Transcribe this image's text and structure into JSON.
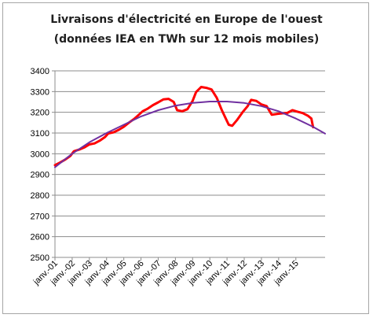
{
  "chart_data": {
    "type": "line",
    "title": "Livraisons d'électricité en Europe de l'ouest",
    "subtitle": "(données IEA en TWh sur 12 mois mobiles)",
    "xlabel": "",
    "ylabel": "",
    "ylim": [
      2500,
      3400
    ],
    "yticks": [
      2500,
      2600,
      2700,
      2800,
      2900,
      3000,
      3100,
      3200,
      3300,
      3400
    ],
    "xticks": [
      "janv.-01",
      "janv.-02",
      "janv.-03",
      "janv.-04",
      "janv.-05",
      "janv.-06",
      "janv.-07",
      "janv.-08",
      "janv.-09",
      "janv.-10",
      "janv.-11",
      "janv.-12",
      "janv.-13",
      "janv.-14",
      "janv.-15"
    ],
    "grid": "horizontal",
    "legend": "none",
    "series": [
      {
        "color": "#ff0000",
        "style": "data",
        "points": [
          [
            2001.0,
            2945
          ],
          [
            2001.3,
            2958
          ],
          [
            2001.6,
            2972
          ],
          [
            2001.9,
            2990
          ],
          [
            2002.1,
            3012
          ],
          [
            2002.4,
            3020
          ],
          [
            2002.7,
            3030
          ],
          [
            2003.0,
            3045
          ],
          [
            2003.3,
            3050
          ],
          [
            2003.6,
            3063
          ],
          [
            2003.9,
            3080
          ],
          [
            2004.1,
            3098
          ],
          [
            2004.4,
            3103
          ],
          [
            2004.7,
            3115
          ],
          [
            2005.0,
            3130
          ],
          [
            2005.3,
            3150
          ],
          [
            2005.6,
            3168
          ],
          [
            2005.9,
            3190
          ],
          [
            2006.1,
            3205
          ],
          [
            2006.4,
            3218
          ],
          [
            2006.7,
            3235
          ],
          [
            2007.0,
            3248
          ],
          [
            2007.3,
            3262
          ],
          [
            2007.6,
            3265
          ],
          [
            2007.9,
            3250
          ],
          [
            2008.1,
            3210
          ],
          [
            2008.4,
            3205
          ],
          [
            2008.7,
            3215
          ],
          [
            2009.0,
            3255
          ],
          [
            2009.2,
            3298
          ],
          [
            2009.5,
            3322
          ],
          [
            2009.8,
            3318
          ],
          [
            2010.1,
            3310
          ],
          [
            2010.4,
            3270
          ],
          [
            2010.7,
            3210
          ],
          [
            2010.9,
            3175
          ],
          [
            2011.1,
            3140
          ],
          [
            2011.3,
            3135
          ],
          [
            2011.6,
            3165
          ],
          [
            2011.9,
            3200
          ],
          [
            2012.2,
            3230
          ],
          [
            2012.4,
            3260
          ],
          [
            2012.7,
            3255
          ],
          [
            2013.0,
            3238
          ],
          [
            2013.3,
            3230
          ],
          [
            2013.6,
            3188
          ],
          [
            2013.9,
            3192
          ],
          [
            2014.2,
            3195
          ],
          [
            2014.5,
            3197
          ],
          [
            2014.8,
            3210
          ],
          [
            2015.1,
            3203
          ],
          [
            2015.4,
            3196
          ],
          [
            2015.7,
            3183
          ],
          [
            2015.9,
            3170
          ],
          [
            2016.0,
            3128
          ]
        ]
      },
      {
        "color": "#7030a0",
        "style": "trend",
        "points": [
          [
            2001.0,
            2935
          ],
          [
            2002.0,
            3000
          ],
          [
            2003.0,
            3055
          ],
          [
            2004.0,
            3100
          ],
          [
            2005.0,
            3140
          ],
          [
            2006.0,
            3180
          ],
          [
            2007.0,
            3210
          ],
          [
            2008.0,
            3232
          ],
          [
            2009.0,
            3245
          ],
          [
            2010.0,
            3252
          ],
          [
            2011.0,
            3252
          ],
          [
            2012.0,
            3245
          ],
          [
            2013.0,
            3230
          ],
          [
            2014.0,
            3205
          ],
          [
            2015.0,
            3170
          ],
          [
            2016.0,
            3130
          ],
          [
            2016.7,
            3097
          ]
        ]
      }
    ]
  }
}
